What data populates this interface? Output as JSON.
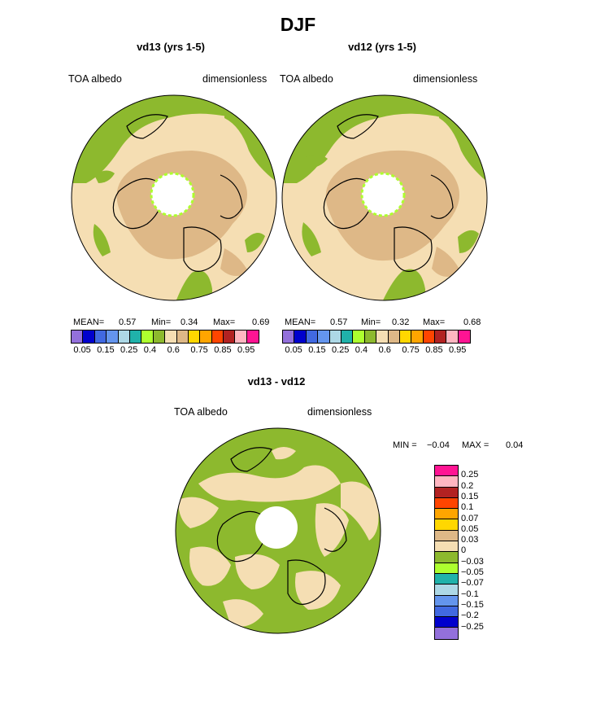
{
  "title": "DJF",
  "panels": [
    {
      "title": "vd13 (yrs 1-5)",
      "left_label": "TOA albedo",
      "right_label": "dimensionless",
      "mean_label": "MEAN=",
      "mean": "0.57",
      "min_label": "Min=",
      "min": "0.34",
      "max_label": "Max=",
      "max": "0.69"
    },
    {
      "title": "vd12 (yrs 1-5)",
      "left_label": "TOA albedo",
      "right_label": "dimensionless",
      "mean_label": "MEAN=",
      "mean": "0.57",
      "min_label": "Min=",
      "min": "0.32",
      "max_label": "Max=",
      "max": "0.68"
    }
  ],
  "diff": {
    "title": "vd13 - vd12",
    "left_label": "TOA albedo",
    "right_label": "dimensionless",
    "min_label": "MIN =",
    "min": "−0.04",
    "max_label": "MAX =",
    "max": "0.04"
  },
  "colorbar_abs": {
    "colors": [
      "#9370DB",
      "#0000CD",
      "#4169E1",
      "#6495ED",
      "#ADD8E6",
      "#20B2AA",
      "#ADFF2F",
      "#8DB92E",
      "#F5DEB3",
      "#DEB887",
      "#FFD700",
      "#FFA500",
      "#FF4500",
      "#B22222",
      "#FFB6C1",
      "#FF1493"
    ],
    "ticks": [
      "0.05",
      "0.15",
      "0.25",
      "0.4",
      "0.6",
      "0.75",
      "0.85",
      "0.95"
    ]
  },
  "colorbar_diff": {
    "colors": [
      "#FF1493",
      "#FFB6C1",
      "#B22222",
      "#FF4500",
      "#FFA500",
      "#FFD700",
      "#DEB887",
      "#F5DEB3",
      "#8DB92E",
      "#ADFF2F",
      "#20B2AA",
      "#ADD8E6",
      "#6495ED",
      "#4169E1",
      "#0000CD",
      "#9370DB"
    ],
    "ticks": [
      "0.25",
      "0.2",
      "0.15",
      "0.1",
      "0.07",
      "0.05",
      "0.03",
      "0",
      "−0.03",
      "−0.05",
      "−0.07",
      "−0.1",
      "−0.15",
      "−0.2",
      "−0.25"
    ]
  }
}
